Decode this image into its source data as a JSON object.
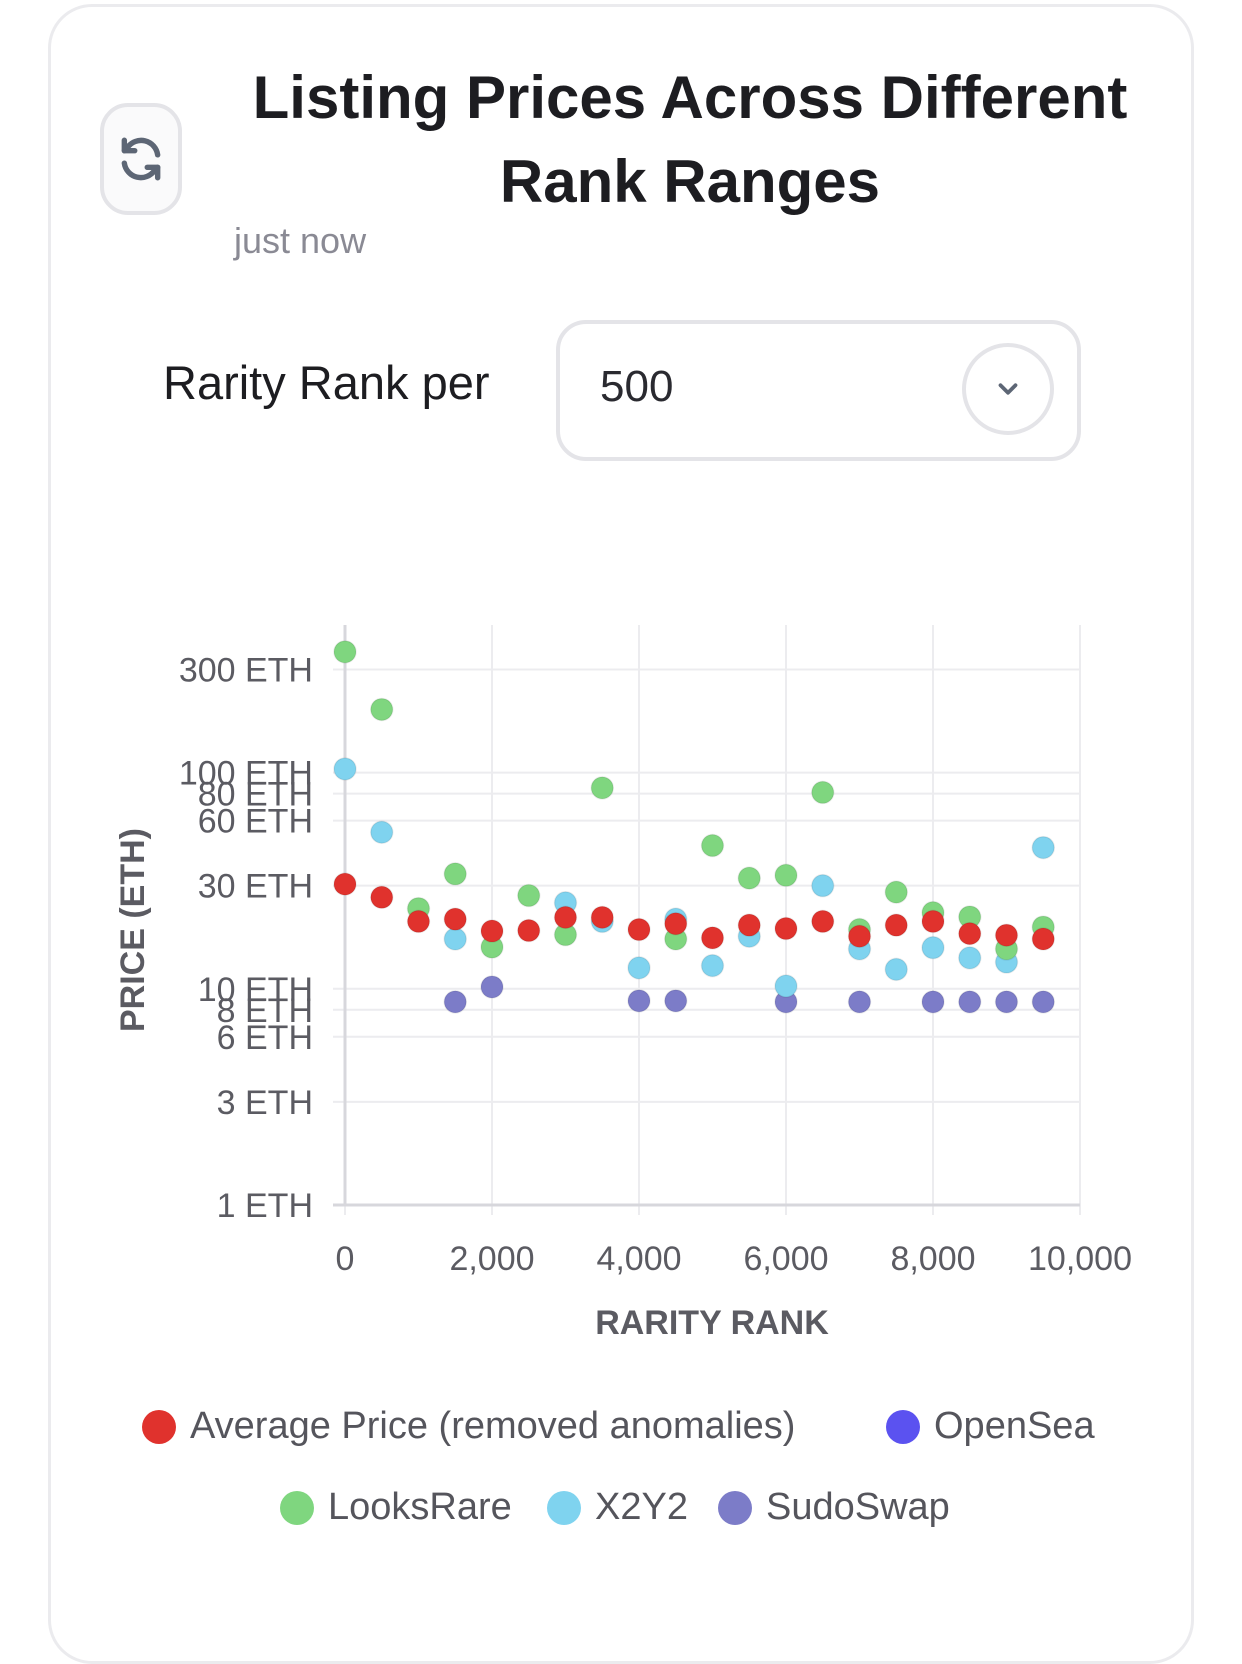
{
  "header": {
    "title": "Listing Prices Across Different Rank Ranges",
    "timestamp": "just now",
    "refresh_icon": "refresh-icon"
  },
  "filter": {
    "label": "Rarity Rank per",
    "selected": "500",
    "chevron_icon": "chevron-down-icon"
  },
  "colors": {
    "average": "#e0322d",
    "opensea": "#5b52f0",
    "looksrare": "#7fd67f",
    "x2y2": "#7fd3ef",
    "sudoswap": "#7c7cc8",
    "grid": "#ececef",
    "axis": "#d7d7dc"
  },
  "legend": {
    "items": [
      {
        "label": "Average Price (removed anomalies)",
        "color": "#e0322d"
      },
      {
        "label": "OpenSea",
        "color": "#5b52f0"
      },
      {
        "label": "LooksRare",
        "color": "#7fd67f"
      },
      {
        "label": "X2Y2",
        "color": "#7fd3ef"
      },
      {
        "label": "SudoSwap",
        "color": "#7c7cc8"
      }
    ]
  },
  "chart_data": {
    "type": "scatter",
    "xlabel": "RARITY RANK",
    "ylabel": "PRICE (ETH)",
    "xlim": [
      0,
      10000
    ],
    "ylim": [
      1,
      350
    ],
    "yscale": "log",
    "x_ticks": [
      {
        "value": 0,
        "label": "0"
      },
      {
        "value": 2000,
        "label": "2,000"
      },
      {
        "value": 4000,
        "label": "4,000"
      },
      {
        "value": 6000,
        "label": "6,000"
      },
      {
        "value": 8000,
        "label": "8,000"
      },
      {
        "value": 10000,
        "label": "10,000"
      }
    ],
    "y_ticks": [
      {
        "value": 1,
        "label": "1 ETH"
      },
      {
        "value": 3,
        "label": "3 ETH"
      },
      {
        "value": 6,
        "label": "6 ETH"
      },
      {
        "value": 8,
        "label": "8 ETH"
      },
      {
        "value": 10,
        "label": "10 ETH"
      },
      {
        "value": 30,
        "label": "30 ETH"
      },
      {
        "value": 60,
        "label": "60 ETH"
      },
      {
        "value": 80,
        "label": "80 ETH"
      },
      {
        "value": 100,
        "label": "100 ETH"
      },
      {
        "value": 300,
        "label": "300 ETH"
      }
    ],
    "grid": true,
    "legend_position": "bottom",
    "series": [
      {
        "name": "SudoSwap",
        "color": "#7c7cc8",
        "points": [
          [
            1500,
            8.7
          ],
          [
            2000,
            10.2
          ],
          [
            4000,
            8.8
          ],
          [
            4500,
            8.8
          ],
          [
            6000,
            8.7
          ],
          [
            7000,
            8.7
          ],
          [
            8000,
            8.7
          ],
          [
            8500,
            8.7
          ],
          [
            9000,
            8.7
          ],
          [
            9500,
            8.7
          ]
        ]
      },
      {
        "name": "X2Y2",
        "color": "#7fd3ef",
        "points": [
          [
            0,
            104
          ],
          [
            500,
            53
          ],
          [
            1500,
            17
          ],
          [
            3000,
            25
          ],
          [
            3500,
            20.5
          ],
          [
            4000,
            12.5
          ],
          [
            4500,
            21
          ],
          [
            5000,
            12.8
          ],
          [
            5500,
            17.5
          ],
          [
            6000,
            10.3
          ],
          [
            6500,
            30
          ],
          [
            7000,
            15.3
          ],
          [
            7500,
            12.3
          ],
          [
            8000,
            15.5
          ],
          [
            8500,
            13.9
          ],
          [
            9000,
            13.3
          ],
          [
            9500,
            45
          ]
        ]
      },
      {
        "name": "LooksRare",
        "color": "#7fd67f",
        "points": [
          [
            0,
            362
          ],
          [
            500,
            196
          ],
          [
            1000,
            23.5
          ],
          [
            1500,
            34
          ],
          [
            2000,
            15.6
          ],
          [
            2500,
            27
          ],
          [
            3000,
            17.8
          ],
          [
            3500,
            85
          ],
          [
            4500,
            17
          ],
          [
            5000,
            46
          ],
          [
            5500,
            32.5
          ],
          [
            6000,
            33.5
          ],
          [
            6500,
            81
          ],
          [
            7000,
            18.8
          ],
          [
            7500,
            28
          ],
          [
            8000,
            22.5
          ],
          [
            8500,
            21.5
          ],
          [
            9000,
            15.3
          ],
          [
            9500,
            19.3
          ]
        ]
      },
      {
        "name": "Average Price (removed anomalies)",
        "color": "#e0322d",
        "points": [
          [
            0,
            30.5
          ],
          [
            500,
            26.5
          ],
          [
            1000,
            20.5
          ],
          [
            1500,
            21
          ],
          [
            2000,
            18.5
          ],
          [
            2500,
            18.6
          ],
          [
            3000,
            21.4
          ],
          [
            3500,
            21.4
          ],
          [
            4000,
            18.8
          ],
          [
            4500,
            20
          ],
          [
            5000,
            17.2
          ],
          [
            5500,
            19.7
          ],
          [
            6000,
            19
          ],
          [
            6500,
            20.5
          ],
          [
            7000,
            17.5
          ],
          [
            7500,
            19.7
          ],
          [
            8000,
            20.5
          ],
          [
            8500,
            18
          ],
          [
            9000,
            17.7
          ],
          [
            9500,
            17
          ]
        ]
      }
    ]
  }
}
